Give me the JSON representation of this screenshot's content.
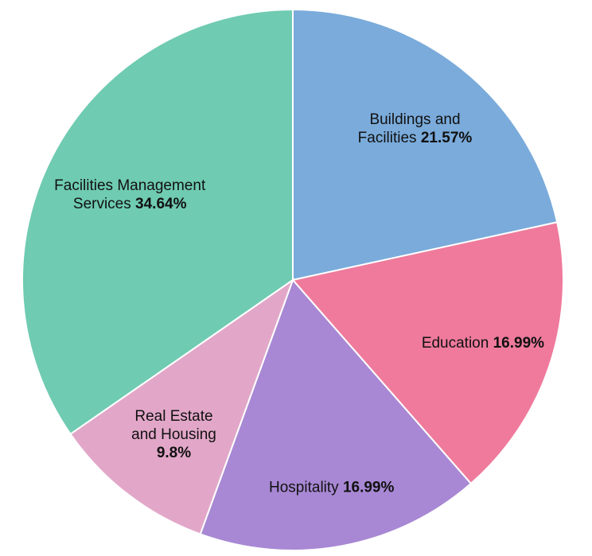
{
  "chart_data": {
    "type": "pie",
    "slices": [
      {
        "label": "Buildings and Facilities",
        "lines": [
          "Buildings and",
          "Facilities"
        ],
        "value": 21.57,
        "pct_label": "21.57%",
        "color": "#7aabdb"
      },
      {
        "label": "Education",
        "lines": [
          "Education"
        ],
        "value": 16.99,
        "pct_label": "16.99%",
        "color": "#ef7a9c"
      },
      {
        "label": "Hospitality",
        "lines": [
          "Hospitality"
        ],
        "value": 16.99,
        "pct_label": "16.99%",
        "color": "#a888d4"
      },
      {
        "label": "Real Estate and Housing",
        "lines": [
          "Real Estate",
          "and Housing"
        ],
        "value": 9.8,
        "pct_label": "9.8%",
        "color": "#e2a7c8"
      },
      {
        "label": "Facilities Management Services",
        "lines": [
          "Facilities Management",
          "Services"
        ],
        "value": 34.64,
        "pct_label": "34.64%",
        "color": "#6fcbb1"
      }
    ],
    "start_angle_deg": 0,
    "direction": "clockwise"
  }
}
